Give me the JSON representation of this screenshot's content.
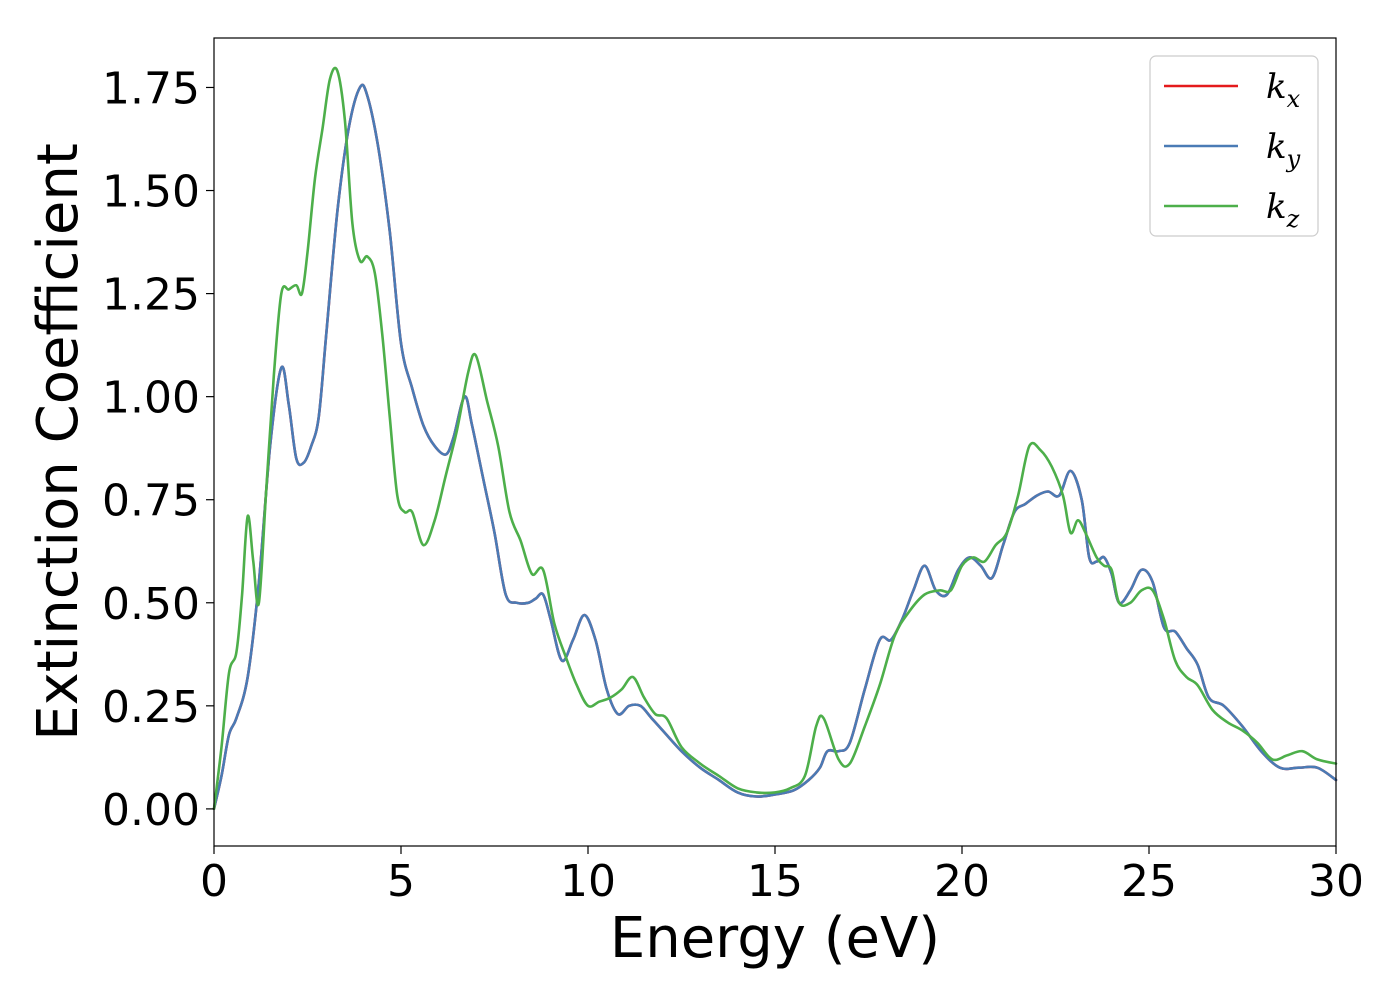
{
  "chart_data": {
    "type": "line",
    "title": "",
    "xlabel": "Energy (eV)",
    "ylabel": "Extinction Coefficient",
    "xlim": [
      0,
      30
    ],
    "ylim": [
      -0.09,
      1.87
    ],
    "xticks": [
      0,
      5,
      10,
      15,
      20,
      25,
      30
    ],
    "xtick_labels": [
      "0",
      "5",
      "10",
      "15",
      "20",
      "25",
      "30"
    ],
    "yticks": [
      0,
      0.25,
      0.5,
      0.75,
      1.0,
      1.25,
      1.5,
      1.75
    ],
    "ytick_labels": [
      "0.00",
      "0.25",
      "0.50",
      "0.75",
      "1.00",
      "1.25",
      "1.50",
      "1.75"
    ],
    "grid": false,
    "legend_position": "top-right",
    "series": [
      {
        "name": "k_x",
        "legend_base": "k",
        "legend_sub": "x",
        "color": "#e41a1c",
        "x": [
          0,
          0.2,
          0.4,
          0.6,
          0.9,
          1.2,
          1.5,
          1.8,
          2.0,
          2.2,
          2.4,
          2.6,
          2.8,
          3.0,
          3.3,
          3.6,
          3.9,
          4.1,
          4.4,
          4.7,
          5.0,
          5.3,
          5.6,
          5.9,
          6.2,
          6.4,
          6.7,
          6.9,
          7.2,
          7.5,
          7.8,
          8.1,
          8.4,
          8.6,
          8.8,
          9.0,
          9.3,
          9.6,
          9.9,
          10.2,
          10.5,
          10.8,
          11.1,
          11.4,
          11.7,
          12.0,
          12.5,
          13.0,
          13.5,
          14.0,
          14.5,
          15.0,
          15.5,
          15.9,
          16.2,
          16.4,
          16.7,
          17.0,
          17.4,
          17.8,
          18.1,
          18.4,
          18.7,
          19.0,
          19.3,
          19.6,
          19.9,
          20.2,
          20.5,
          20.8,
          21.1,
          21.4,
          21.7,
          22.0,
          22.3,
          22.6,
          22.9,
          23.2,
          23.4,
          23.6,
          23.8,
          24.0,
          24.2,
          24.5,
          24.8,
          25.1,
          25.4,
          25.7,
          26.0,
          26.3,
          26.6,
          27.0,
          27.5,
          28.0,
          28.5,
          29.0,
          29.5,
          30.0
        ],
        "y": [
          0.0,
          0.08,
          0.18,
          0.22,
          0.32,
          0.55,
          0.88,
          1.07,
          0.98,
          0.85,
          0.84,
          0.88,
          0.95,
          1.15,
          1.45,
          1.65,
          1.75,
          1.73,
          1.6,
          1.4,
          1.13,
          1.02,
          0.93,
          0.88,
          0.86,
          0.9,
          1.0,
          0.93,
          0.8,
          0.67,
          0.52,
          0.5,
          0.5,
          0.51,
          0.52,
          0.46,
          0.36,
          0.41,
          0.47,
          0.41,
          0.29,
          0.23,
          0.25,
          0.25,
          0.22,
          0.19,
          0.14,
          0.1,
          0.07,
          0.04,
          0.03,
          0.035,
          0.045,
          0.07,
          0.1,
          0.14,
          0.14,
          0.16,
          0.29,
          0.41,
          0.41,
          0.46,
          0.53,
          0.59,
          0.53,
          0.52,
          0.58,
          0.61,
          0.59,
          0.56,
          0.64,
          0.72,
          0.74,
          0.76,
          0.77,
          0.76,
          0.82,
          0.75,
          0.61,
          0.6,
          0.61,
          0.57,
          0.5,
          0.53,
          0.58,
          0.55,
          0.44,
          0.43,
          0.39,
          0.35,
          0.27,
          0.25,
          0.2,
          0.14,
          0.1,
          0.1,
          0.1,
          0.07
        ]
      },
      {
        "name": "k_y",
        "legend_base": "k",
        "legend_sub": "y",
        "color": "#4a7bb5",
        "x": [
          0,
          0.2,
          0.4,
          0.6,
          0.9,
          1.2,
          1.5,
          1.8,
          2.0,
          2.2,
          2.4,
          2.6,
          2.8,
          3.0,
          3.3,
          3.6,
          3.9,
          4.1,
          4.4,
          4.7,
          5.0,
          5.3,
          5.6,
          5.9,
          6.2,
          6.4,
          6.7,
          6.9,
          7.2,
          7.5,
          7.8,
          8.1,
          8.4,
          8.6,
          8.8,
          9.0,
          9.3,
          9.6,
          9.9,
          10.2,
          10.5,
          10.8,
          11.1,
          11.4,
          11.7,
          12.0,
          12.5,
          13.0,
          13.5,
          14.0,
          14.5,
          15.0,
          15.5,
          15.9,
          16.2,
          16.4,
          16.7,
          17.0,
          17.4,
          17.8,
          18.1,
          18.4,
          18.7,
          19.0,
          19.3,
          19.6,
          19.9,
          20.2,
          20.5,
          20.8,
          21.1,
          21.4,
          21.7,
          22.0,
          22.3,
          22.6,
          22.9,
          23.2,
          23.4,
          23.6,
          23.8,
          24.0,
          24.2,
          24.5,
          24.8,
          25.1,
          25.4,
          25.7,
          26.0,
          26.3,
          26.6,
          27.0,
          27.5,
          28.0,
          28.5,
          29.0,
          29.5,
          30.0
        ],
        "y": [
          0.0,
          0.08,
          0.18,
          0.22,
          0.32,
          0.55,
          0.88,
          1.07,
          0.98,
          0.85,
          0.84,
          0.88,
          0.95,
          1.15,
          1.45,
          1.65,
          1.75,
          1.73,
          1.6,
          1.4,
          1.13,
          1.02,
          0.93,
          0.88,
          0.86,
          0.9,
          1.0,
          0.93,
          0.8,
          0.67,
          0.52,
          0.5,
          0.5,
          0.51,
          0.52,
          0.46,
          0.36,
          0.41,
          0.47,
          0.41,
          0.29,
          0.23,
          0.25,
          0.25,
          0.22,
          0.19,
          0.14,
          0.1,
          0.07,
          0.04,
          0.03,
          0.035,
          0.045,
          0.07,
          0.1,
          0.14,
          0.14,
          0.16,
          0.29,
          0.41,
          0.41,
          0.46,
          0.53,
          0.59,
          0.53,
          0.52,
          0.58,
          0.61,
          0.59,
          0.56,
          0.64,
          0.72,
          0.74,
          0.76,
          0.77,
          0.76,
          0.82,
          0.75,
          0.61,
          0.6,
          0.61,
          0.57,
          0.5,
          0.53,
          0.58,
          0.55,
          0.44,
          0.43,
          0.39,
          0.35,
          0.27,
          0.25,
          0.2,
          0.14,
          0.1,
          0.1,
          0.1,
          0.07
        ]
      },
      {
        "name": "k_z",
        "legend_base": "k",
        "legend_sub": "z",
        "color": "#4daf4a",
        "x": [
          0,
          0.2,
          0.4,
          0.6,
          0.75,
          0.9,
          1.05,
          1.2,
          1.4,
          1.6,
          1.8,
          2.0,
          2.2,
          2.35,
          2.5,
          2.7,
          2.9,
          3.1,
          3.3,
          3.5,
          3.7,
          3.9,
          4.1,
          4.3,
          4.5,
          4.7,
          4.9,
          5.1,
          5.3,
          5.6,
          5.9,
          6.2,
          6.5,
          6.8,
          7.0,
          7.3,
          7.6,
          7.9,
          8.2,
          8.5,
          8.8,
          9.1,
          9.4,
          9.7,
          10.0,
          10.3,
          10.6,
          10.9,
          11.2,
          11.5,
          11.8,
          12.1,
          12.5,
          13.0,
          13.5,
          14.0,
          14.5,
          15.0,
          15.4,
          15.8,
          16.1,
          16.3,
          16.7,
          17.0,
          17.4,
          17.8,
          18.2,
          18.6,
          19.0,
          19.4,
          19.7,
          20.0,
          20.3,
          20.6,
          20.9,
          21.2,
          21.5,
          21.8,
          22.1,
          22.4,
          22.7,
          22.9,
          23.1,
          23.3,
          23.6,
          23.8,
          24.0,
          24.2,
          24.5,
          24.8,
          25.1,
          25.4,
          25.7,
          26.0,
          26.3,
          26.7,
          27.1,
          27.5,
          27.9,
          28.3,
          28.7,
          29.1,
          29.5,
          30.0
        ],
        "y": [
          0.0,
          0.15,
          0.33,
          0.38,
          0.52,
          0.71,
          0.6,
          0.5,
          0.78,
          1.05,
          1.25,
          1.26,
          1.27,
          1.25,
          1.35,
          1.53,
          1.65,
          1.77,
          1.79,
          1.67,
          1.42,
          1.33,
          1.34,
          1.3,
          1.15,
          0.95,
          0.76,
          0.72,
          0.72,
          0.64,
          0.7,
          0.81,
          0.92,
          1.06,
          1.1,
          0.99,
          0.88,
          0.72,
          0.65,
          0.57,
          0.58,
          0.45,
          0.37,
          0.3,
          0.25,
          0.26,
          0.27,
          0.29,
          0.32,
          0.27,
          0.23,
          0.22,
          0.15,
          0.11,
          0.08,
          0.05,
          0.04,
          0.04,
          0.05,
          0.08,
          0.2,
          0.22,
          0.12,
          0.11,
          0.2,
          0.3,
          0.42,
          0.48,
          0.52,
          0.53,
          0.53,
          0.59,
          0.61,
          0.6,
          0.64,
          0.67,
          0.76,
          0.88,
          0.87,
          0.83,
          0.76,
          0.67,
          0.7,
          0.67,
          0.61,
          0.59,
          0.58,
          0.5,
          0.5,
          0.53,
          0.53,
          0.46,
          0.36,
          0.32,
          0.3,
          0.24,
          0.21,
          0.19,
          0.16,
          0.12,
          0.13,
          0.14,
          0.12,
          0.11
        ]
      }
    ]
  }
}
